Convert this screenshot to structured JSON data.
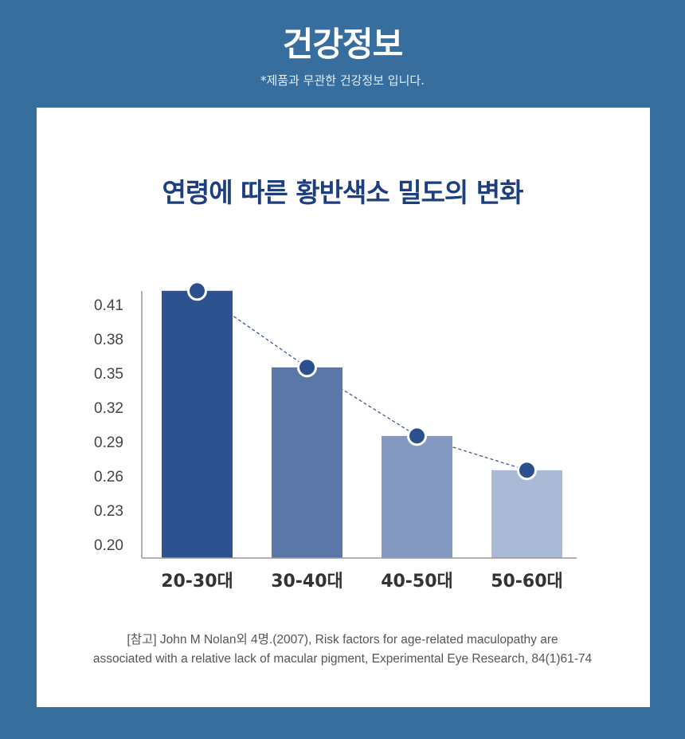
{
  "header": {
    "title": "건강정보",
    "subtitle": "*제품과 무관한 건강정보 입니다."
  },
  "chart_data": {
    "type": "bar",
    "title": "연령에 따른 황반색소 밀도의 변화",
    "categories": [
      "20-30대",
      "30-40대",
      "40-50대",
      "50-60대"
    ],
    "values": [
      0.422,
      0.355,
      0.295,
      0.265
    ],
    "yticks": [
      "0.41",
      "0.38",
      "0.35",
      "0.32",
      "0.29",
      "0.26",
      "0.23",
      "0.20"
    ],
    "ylim": [
      0.188,
      0.422
    ],
    "xlabel": "",
    "ylabel": "",
    "grid": false,
    "overlay": "dashed line with markers connecting bar tops",
    "colors": [
      "#2e518f",
      "#5a77a8",
      "#8298bf",
      "#aabad6"
    ],
    "marker_color": "#2c4f8e"
  },
  "reference": {
    "line1": "[참고] John M Nolan외 4명.(2007), Risk factors for age-related maculopathy are",
    "line2": "associated with a relative lack of macular pigment, Experimental Eye Research, 84(1)61-74"
  }
}
